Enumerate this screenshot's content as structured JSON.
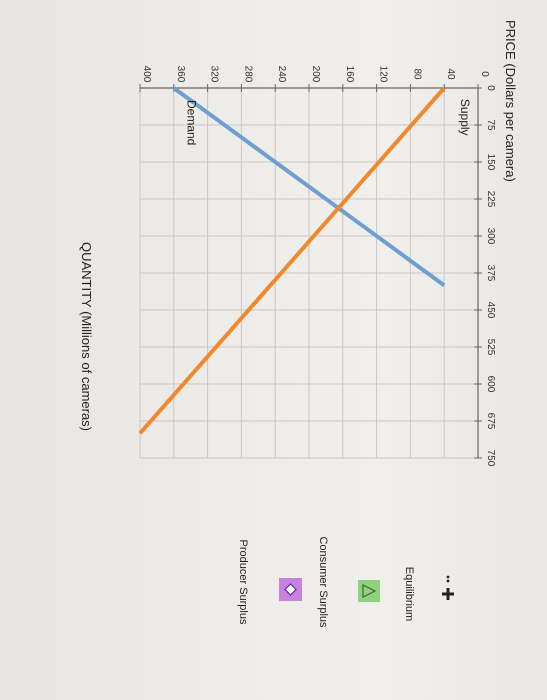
{
  "chart_data": {
    "type": "line",
    "title": "",
    "ylabel": "PRICE (Dollars per camera)",
    "xlabel": "QUANTITY (Millions of cameras)",
    "xlim": [
      0,
      750
    ],
    "ylim": [
      0,
      400
    ],
    "x_ticks": [
      0,
      75,
      150,
      225,
      300,
      375,
      450,
      525,
      600,
      675,
      750
    ],
    "y_ticks": [
      0,
      40,
      80,
      120,
      160,
      200,
      240,
      280,
      320,
      360,
      400
    ],
    "grid": true,
    "series": [
      {
        "name": "Demand",
        "color": "#6f9fd1",
        "x": [
          0,
          400
        ],
        "y": [
          360,
          40
        ]
      },
      {
        "name": "Supply",
        "color": "#f0882c",
        "x": [
          0,
          700
        ],
        "y": [
          40,
          400
        ]
      }
    ],
    "legend": {
      "placement": "right",
      "items": [
        {
          "label": "Equilibrium",
          "icon": "black-plus-marker",
          "color": "#222222"
        },
        {
          "label": "Consumer Surplus",
          "icon": "triangle-marker",
          "color": "#8fd17e"
        },
        {
          "label": "Producer Surplus",
          "icon": "diamond-marker",
          "color": "#c981e0"
        }
      ]
    }
  }
}
